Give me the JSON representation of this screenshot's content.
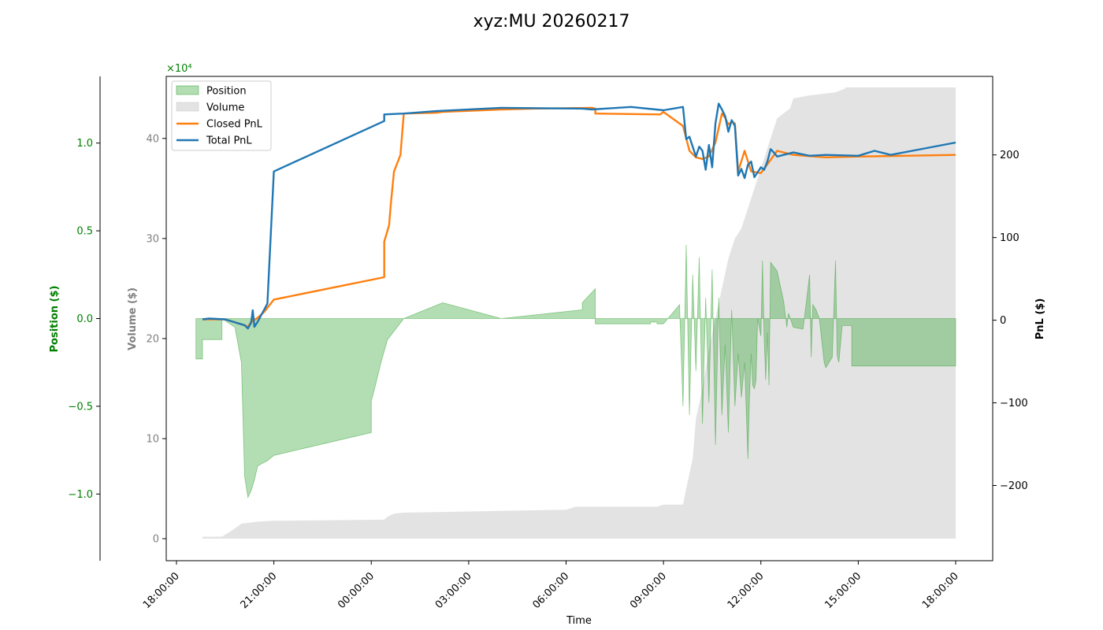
{
  "chart_data": {
    "type": "line",
    "title": "xyz:MU 20260217",
    "xlabel": "Time",
    "x_ticks": [
      "18:00:00",
      "21:00:00",
      "00:00:00",
      "03:00:00",
      "06:00:00",
      "09:00:00",
      "12:00:00",
      "15:00:00",
      "18:00:00"
    ],
    "axes": {
      "position": {
        "label": "Position ($)",
        "color": "#008000",
        "multiplier": "×10⁴",
        "ticks": [
          "−1.0",
          "−0.5",
          "0.0",
          "0.5",
          "1.0"
        ],
        "tick_values": [
          -1.0,
          -0.5,
          0.0,
          0.5,
          1.0
        ],
        "range": [
          -1.38,
          1.38
        ]
      },
      "volume": {
        "label": "Volume ($)",
        "color": "#808080",
        "ticks": [
          "0",
          "10",
          "20",
          "30",
          "40"
        ],
        "tick_values": [
          0,
          10,
          20,
          30,
          40
        ],
        "range": [
          -2.2,
          46.2
        ]
      },
      "pnl": {
        "label": "PnL ($)",
        "color": "#000000",
        "ticks": [
          "−200",
          "−100",
          "0",
          "100",
          "200"
        ],
        "tick_values": [
          -200,
          -100,
          0,
          100,
          200
        ],
        "range": [
          -291,
          295
        ]
      }
    },
    "legend": {
      "placement": "top-left",
      "entries": [
        "Position",
        "Volume",
        "Closed PnL",
        "Total PnL"
      ]
    },
    "series": [
      {
        "name": "Position",
        "kind": "area",
        "axis": "position",
        "color": "#2ca02c",
        "x_hours": [
          0.6,
          0.6,
          0.8,
          0.8,
          1.4,
          1.4,
          1.8,
          2.0,
          2.1,
          2.2,
          2.3,
          2.4,
          2.5,
          2.7,
          2.8,
          3.0,
          3.0,
          6.0,
          6.0,
          6.1,
          6.3,
          6.5,
          7.0,
          8.2,
          10.0,
          12.5,
          12.5,
          12.9,
          12.9,
          14.6,
          14.6,
          14.8,
          14.8,
          15.0,
          15.5,
          15.5,
          15.6,
          15.7,
          15.8,
          15.9,
          16.0,
          16.1,
          16.2,
          16.3,
          16.4,
          16.5,
          16.6,
          16.7,
          16.8,
          16.9,
          17.0,
          17.1,
          17.2,
          17.3,
          17.4,
          17.5,
          17.6,
          17.65,
          17.7,
          17.75,
          17.8,
          17.85,
          17.9,
          18.0,
          18.05,
          18.1,
          18.15,
          18.2,
          18.25,
          18.3,
          18.5,
          18.7,
          18.8,
          18.85,
          19.0,
          19.3,
          19.5,
          19.55,
          19.6,
          19.7,
          19.8,
          19.95,
          20.0,
          20.2,
          20.3,
          20.35,
          20.4,
          20.5,
          20.5,
          20.8,
          20.8,
          24.0
        ],
        "values": [
          0.0,
          -0.23,
          -0.23,
          -0.12,
          -0.12,
          0.0,
          -0.05,
          -0.25,
          -0.9,
          -1.02,
          -0.98,
          -0.92,
          -0.84,
          -0.82,
          -0.81,
          -0.78,
          -0.78,
          -0.65,
          -0.47,
          -0.4,
          -0.25,
          -0.12,
          0.0,
          0.09,
          0.0,
          0.05,
          0.09,
          0.17,
          -0.03,
          -0.03,
          -0.02,
          -0.02,
          -0.03,
          -0.03,
          0.08,
          0.05,
          -0.5,
          0.42,
          -0.55,
          0.25,
          -0.3,
          0.35,
          -0.6,
          0.12,
          -0.48,
          0.28,
          -0.72,
          0.12,
          -0.55,
          -0.15,
          -0.65,
          0.05,
          -0.5,
          -0.2,
          -0.45,
          -0.25,
          -0.8,
          -0.45,
          -0.2,
          -0.38,
          -0.4,
          -0.35,
          0.0,
          -0.1,
          0.33,
          -0.1,
          -0.35,
          -0.08,
          -0.38,
          0.32,
          0.27,
          0.1,
          -0.05,
          0.03,
          -0.05,
          -0.06,
          0.25,
          -0.22,
          0.08,
          0.05,
          0.0,
          -0.25,
          -0.28,
          -0.22,
          0.33,
          -0.21,
          -0.25,
          -0.05,
          -0.04,
          -0.04,
          -0.27,
          -0.27
        ]
      },
      {
        "name": "Volume",
        "kind": "area",
        "axis": "volume",
        "color": "#cccccc",
        "x_hours": [
          0.6,
          0.8,
          0.8,
          1.4,
          1.7,
          2.0,
          2.5,
          3.0,
          3.3,
          6.4,
          6.5,
          6.7,
          7.0,
          12.0,
          12.3,
          14.8,
          15.0,
          15.6,
          15.7,
          15.9,
          16.0,
          16.2,
          16.4,
          16.6,
          16.8,
          17.0,
          17.2,
          17.4,
          17.6,
          17.8,
          18.0,
          18.1,
          18.3,
          18.5,
          18.7,
          18.9,
          19.0,
          19.5,
          20.3,
          20.6,
          20.6,
          24.0
        ],
        "values": [
          0.0,
          0.0,
          0.2,
          0.2,
          0.8,
          1.5,
          1.7,
          1.8,
          1.8,
          1.9,
          2.2,
          2.5,
          2.6,
          2.9,
          3.2,
          3.2,
          3.4,
          3.4,
          5.0,
          8.0,
          12.0,
          15.0,
          19.0,
          22.0,
          25.0,
          28.0,
          30.0,
          31.0,
          33.0,
          35.0,
          37.0,
          38.0,
          40.0,
          42.0,
          42.5,
          43.0,
          44.0,
          44.3,
          44.6,
          45.0,
          45.1,
          45.1
        ]
      },
      {
        "name": "Closed PnL",
        "kind": "line",
        "axis": "pnl",
        "color": "#ff7f0e",
        "x_hours": [
          0.8,
          1.5,
          2.0,
          2.2,
          2.3,
          2.5,
          2.7,
          3.0,
          6.4,
          6.4,
          6.55,
          6.6,
          6.7,
          6.9,
          7.0,
          8.0,
          8.2,
          10.0,
          11.0,
          12.8,
          12.9,
          12.9,
          14.9,
          15.0,
          15.6,
          15.8,
          16.0,
          16.2,
          16.4,
          16.6,
          16.8,
          16.9,
          17.0,
          17.1,
          17.2,
          17.3,
          17.5,
          17.7,
          18.0,
          18.5,
          19.0,
          20.0,
          21.0,
          24.0
        ],
        "values": [
          1,
          1,
          -5,
          -8,
          -2,
          3,
          10,
          25,
          52,
          95,
          115,
          140,
          180,
          200,
          250,
          251,
          252,
          255,
          256,
          257,
          256,
          250,
          249,
          252,
          235,
          205,
          197,
          195,
          198,
          215,
          250,
          245,
          237,
          240,
          238,
          180,
          205,
          180,
          178,
          205,
          200,
          197,
          198,
          200
        ]
      },
      {
        "name": "Total PnL",
        "kind": "line",
        "axis": "pnl",
        "color": "#1f77b4",
        "x_hours": [
          0.8,
          1.0,
          1.5,
          2.0,
          2.1,
          2.2,
          2.3,
          2.35,
          2.4,
          2.5,
          2.8,
          3.0,
          6.4,
          6.4,
          7.0,
          8.0,
          10.0,
          12.5,
          12.8,
          14.0,
          15.0,
          15.6,
          15.7,
          15.8,
          16.0,
          16.1,
          16.2,
          16.3,
          16.4,
          16.5,
          16.6,
          16.7,
          16.8,
          16.9,
          17.0,
          17.1,
          17.2,
          17.3,
          17.4,
          17.5,
          17.6,
          17.7,
          17.8,
          18.0,
          18.1,
          18.2,
          18.3,
          18.4,
          18.5,
          18.7,
          19.0,
          19.5,
          20.0,
          21.0,
          21.5,
          22.0,
          24.0
        ],
        "values": [
          1,
          2,
          1,
          -5,
          -6,
          -10,
          -3,
          12,
          -8,
          -2,
          20,
          180,
          241,
          249,
          250,
          253,
          257,
          256,
          255,
          258,
          254,
          258,
          219,
          222,
          198,
          210,
          205,
          182,
          212,
          185,
          238,
          262,
          255,
          247,
          228,
          242,
          235,
          175,
          183,
          172,
          188,
          192,
          173,
          185,
          182,
          192,
          207,
          203,
          198,
          200,
          203,
          199,
          200,
          199,
          205,
          200,
          215
        ]
      }
    ]
  }
}
